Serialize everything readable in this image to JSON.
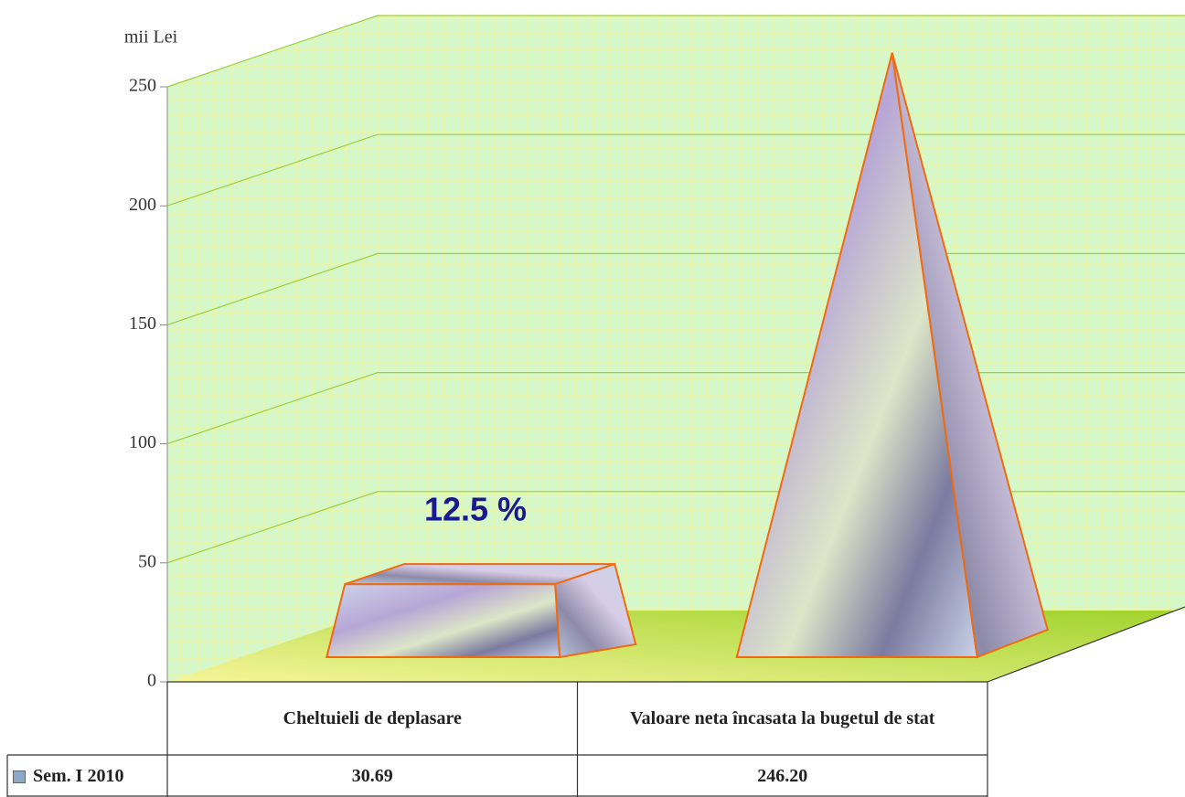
{
  "chart_data": {
    "type": "bar3d",
    "y_label": "mii Lei",
    "annotation": "12.5 %",
    "categories": [
      "Cheltuieli de deplasare",
      "Valoare neta încasata la bugetul de stat"
    ],
    "series": [
      {
        "name": "Sem. I 2010",
        "color": "#8fa8c8",
        "values": [
          30.69,
          246.2
        ],
        "value_labels": [
          "30.69",
          "246.20"
        ]
      }
    ],
    "ylim": [
      0,
      250
    ],
    "yticks": [
      0,
      50,
      100,
      150,
      200,
      250
    ],
    "grid": true
  }
}
